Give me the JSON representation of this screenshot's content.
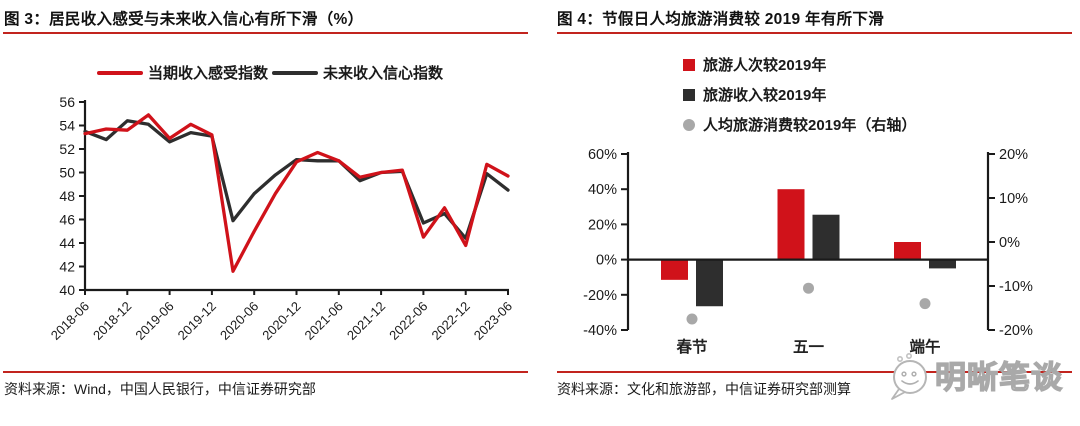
{
  "colors": {
    "accent_red": "#d0121a",
    "dark": "#2e2e2e",
    "dot_gray": "#a8a8a8",
    "axis_black": "#1a1a1a",
    "rule_red": "#c2241e",
    "watermark_gray": "#a9a9a9"
  },
  "watermark": {
    "text": "明晰笔谈",
    "icon": "wechat-bubble-smiley-icon"
  },
  "chart_data": [
    {
      "type": "line",
      "title": "图 3：居民收入感受与未来收入信心有所下滑（%）",
      "source": "资料来源：Wind，中国人民银行，中信证券研究部",
      "legend_position": "top-center",
      "grid": false,
      "ylim": [
        40,
        56
      ],
      "ytick_step": 2,
      "x": [
        "2018-06",
        "2018-09",
        "2018-12",
        "2019-03",
        "2019-06",
        "2019-09",
        "2019-12",
        "2020-03",
        "2020-06",
        "2020-09",
        "2020-12",
        "2021-03",
        "2021-06",
        "2021-09",
        "2021-12",
        "2022-03",
        "2022-06",
        "2022-09",
        "2022-12",
        "2023-03",
        "2023-06"
      ],
      "x_tick_labels": [
        "2018-06",
        "2018-12",
        "2019-06",
        "2019-12",
        "2020-06",
        "2020-12",
        "2021-06",
        "2021-12",
        "2022-06",
        "2022-12",
        "2023-06"
      ],
      "series": [
        {
          "name": "当期收入感受指数",
          "color": "#d0121a",
          "values": [
            53.3,
            53.7,
            53.6,
            54.9,
            52.9,
            54.1,
            53.2,
            41.6,
            45.0,
            48.2,
            50.9,
            51.7,
            51.0,
            49.6,
            50.0,
            50.2,
            44.5,
            47.0,
            43.8,
            50.7,
            49.7
          ]
        },
        {
          "name": "未来收入信心指数",
          "color": "#2e2e2e",
          "values": [
            53.5,
            52.8,
            54.4,
            54.1,
            52.6,
            53.4,
            53.1,
            45.9,
            48.2,
            49.8,
            51.1,
            51.0,
            51.0,
            49.3,
            50.0,
            50.1,
            45.7,
            46.5,
            44.4,
            49.9,
            48.5
          ]
        }
      ]
    },
    {
      "type": "bar",
      "title": "图 4：节假日人均旅游消费较 2019 年有所下滑",
      "source": "资料来源：文化和旅游部，中信证券研究部测算",
      "legend_position": "top-left",
      "categories": [
        "春节",
        "五一",
        "端午"
      ],
      "left_axis": {
        "lim": [
          -40,
          60
        ],
        "ticks": [
          "60%",
          "40%",
          "20%",
          "0%",
          "-20%",
          "-40%"
        ],
        "unit": "%"
      },
      "right_axis": {
        "lim": [
          -20,
          20
        ],
        "ticks": [
          "20%",
          "10%",
          "0%",
          "-10%",
          "-20%"
        ],
        "unit": "%"
      },
      "series": [
        {
          "name": "旅游人次较2019年",
          "type": "bar",
          "axis": "left",
          "color": "#d0121a",
          "values": [
            -11.5,
            40,
            10
          ]
        },
        {
          "name": "旅游收入较2019年",
          "type": "bar",
          "axis": "left",
          "color": "#2e2e2e",
          "values": [
            -26.5,
            25.5,
            -5
          ]
        },
        {
          "name": "人均旅游消费较2019年（右轴）",
          "type": "scatter",
          "axis": "right",
          "color": "#a8a8a8",
          "values": [
            -17.5,
            -10.5,
            -14
          ]
        }
      ]
    }
  ]
}
